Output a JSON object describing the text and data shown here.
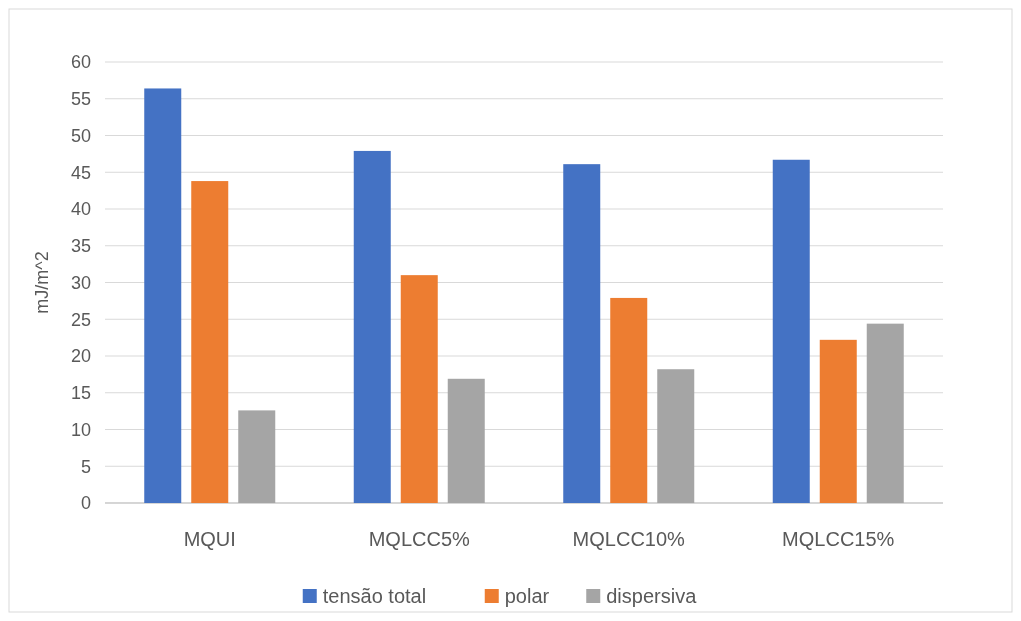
{
  "chart_data": {
    "type": "bar",
    "ylabel": "mJ/m^2",
    "categories": [
      "MQUI",
      "MQLCC5%",
      "MQLCC10%",
      "MQLCC15%"
    ],
    "series": [
      {
        "name": "tensão total",
        "color": "#4472c4",
        "values": [
          56.4,
          47.9,
          46.1,
          46.7
        ]
      },
      {
        "name": "polar",
        "color": "#ed7d31",
        "values": [
          43.8,
          31.0,
          27.9,
          22.2
        ]
      },
      {
        "name": "dispersiva",
        "color": "#a5a5a5",
        "values": [
          12.6,
          16.9,
          18.2,
          24.4
        ]
      }
    ],
    "ylim": [
      0,
      60
    ],
    "yticks": [
      0,
      5,
      10,
      15,
      20,
      25,
      30,
      35,
      40,
      45,
      50,
      55,
      60
    ],
    "grid": "y",
    "legend": "bottom"
  }
}
